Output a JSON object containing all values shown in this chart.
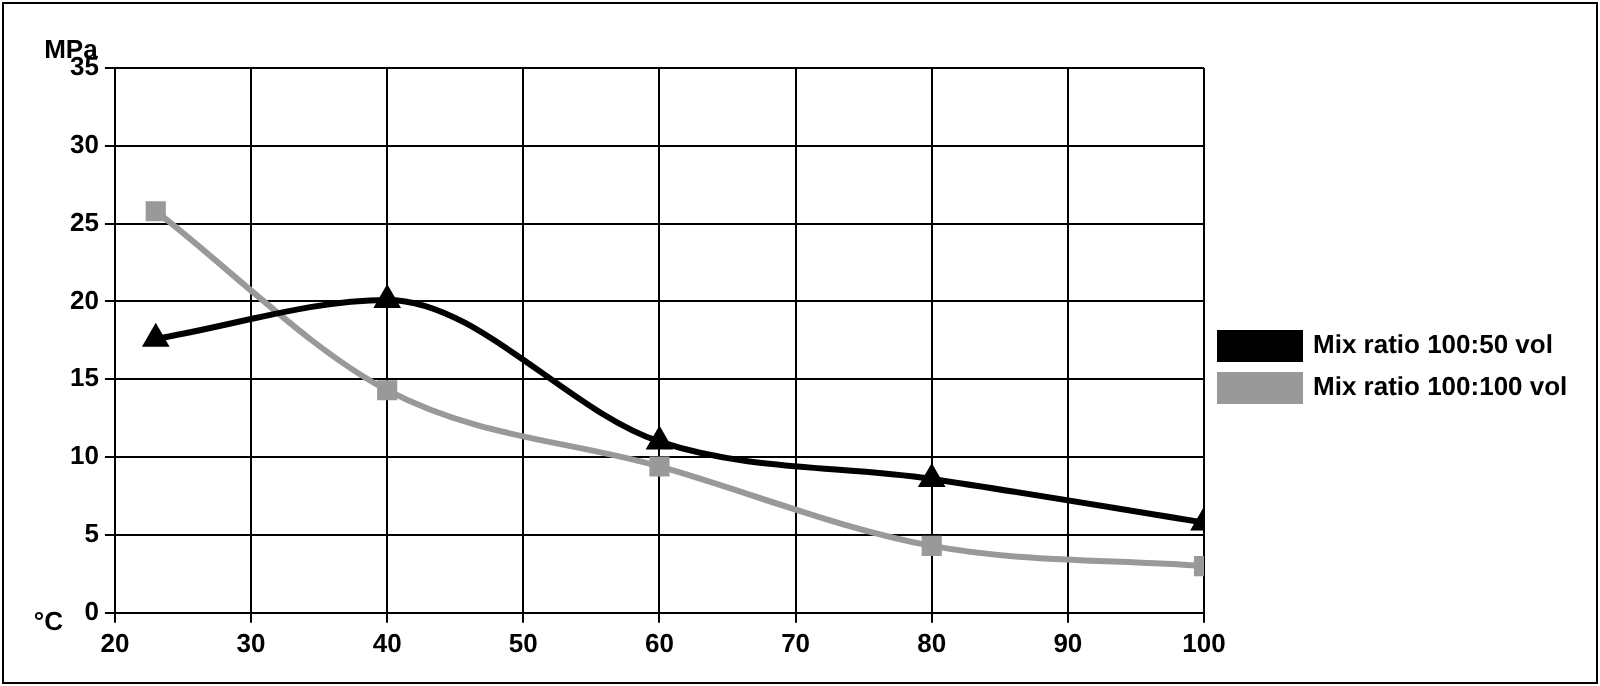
{
  "chart_data": {
    "type": "line",
    "ylabel": "MPa",
    "xlabel": "°C",
    "x": [
      23,
      40,
      60,
      80,
      100
    ],
    "series": [
      {
        "name": "Mix ratio 100:50 vol",
        "color": "#000000",
        "marker": "triangle",
        "values": [
          17.6,
          20.1,
          11,
          8.6,
          5.8
        ]
      },
      {
        "name": "Mix ratio 100:100 vol",
        "color": "#999999",
        "marker": "square",
        "values": [
          25.8,
          14.3,
          9.4,
          4.3,
          3.0
        ]
      }
    ],
    "xlim": [
      20,
      100
    ],
    "xticks": [
      20,
      30,
      40,
      50,
      60,
      70,
      80,
      90,
      100
    ],
    "ylim": [
      0,
      35
    ],
    "yticks": [
      0,
      5,
      10,
      15,
      20,
      25,
      30,
      35
    ],
    "grid": true,
    "legend": "right"
  }
}
